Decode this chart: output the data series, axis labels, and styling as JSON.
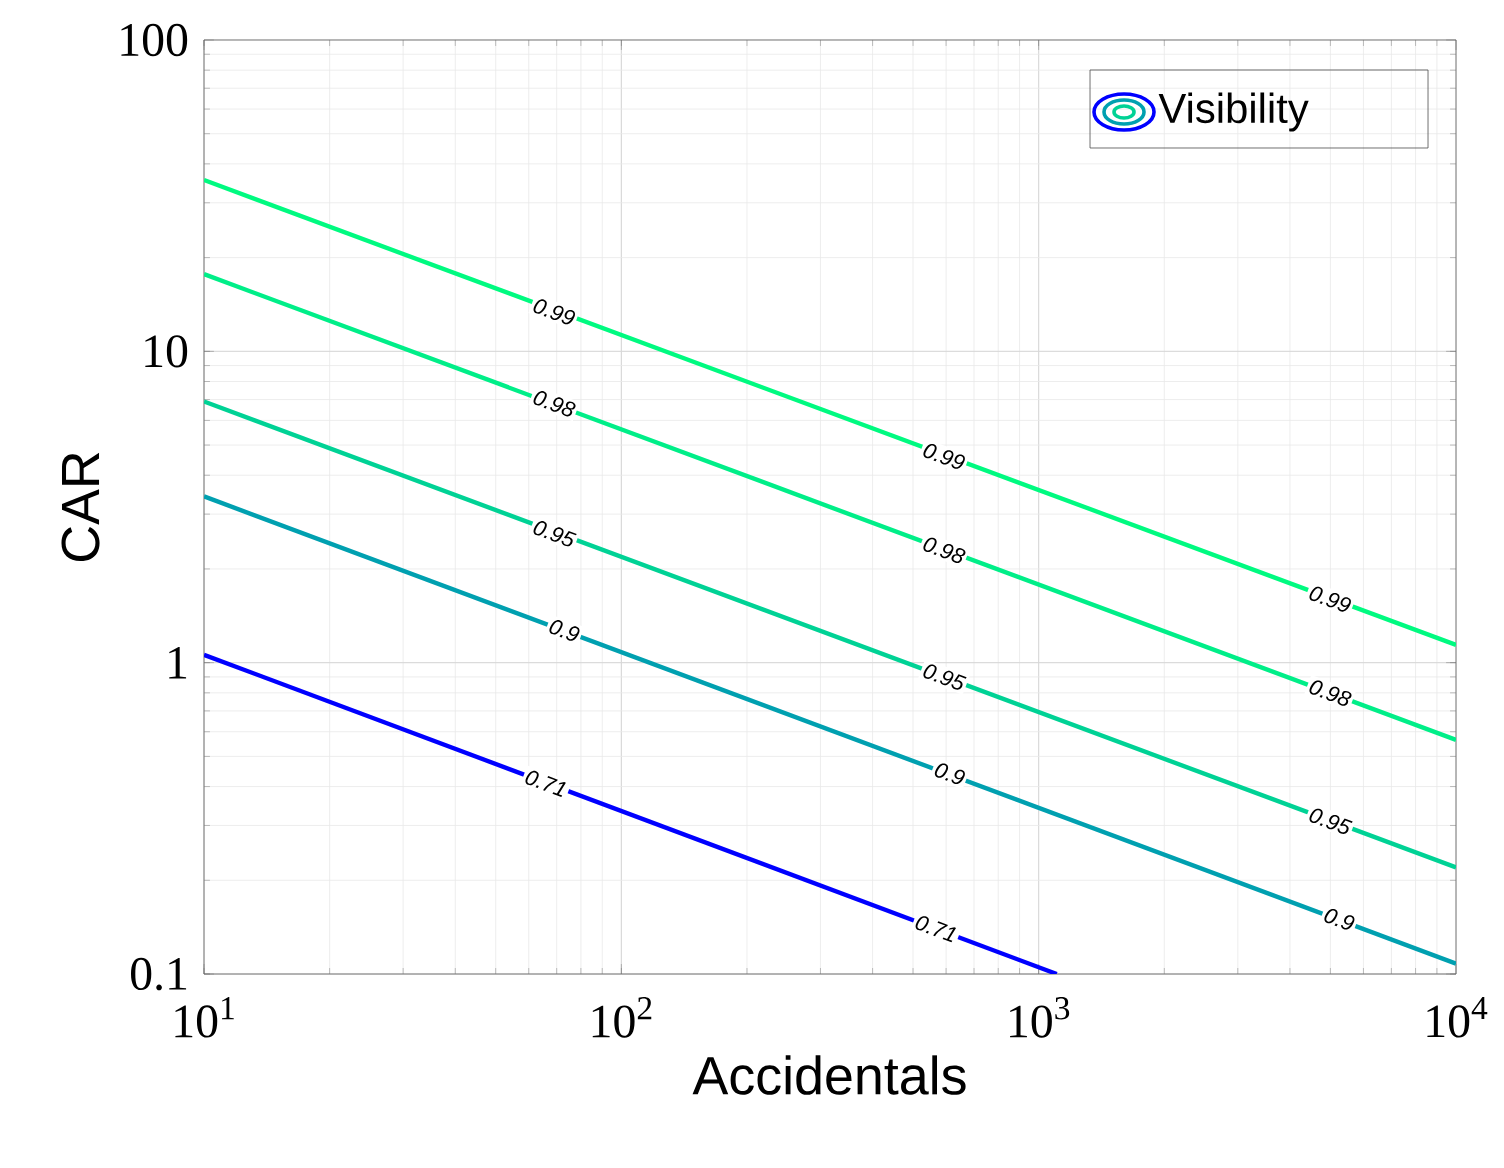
{
  "chart_data": {
    "type": "line",
    "xlabel": "Accidentals",
    "ylabel": "CAR",
    "legend_title": "Visibility",
    "log": "xy",
    "grid": true,
    "marker": "none",
    "line_style": "solid",
    "xlim": [
      10,
      10000
    ],
    "ylim": [
      0.1,
      100
    ],
    "xticks": [
      {
        "value": 10,
        "label": "10$^{1}$"
      },
      {
        "value": 100,
        "label": "10$^{2}$"
      },
      {
        "value": 1000,
        "label": "10$^{3}$"
      },
      {
        "value": 10000,
        "label": "10$^{4}$"
      }
    ],
    "yticks": [
      0.1,
      1,
      10,
      100
    ],
    "series": [
      {
        "color": "#0000ff",
        "x": [
          10,
          1105
        ],
        "values": [
          1.06,
          0.1
        ]
      },
      {
        "color": "#00a0b0",
        "x": [
          10,
          10000
        ],
        "values": [
          3.42,
          0.108
        ]
      },
      {
        "color": "#00d295",
        "x": [
          10,
          10000
        ],
        "values": [
          6.9,
          0.22
        ]
      },
      {
        "color": "#00ee88",
        "x": [
          10,
          10000
        ],
        "values": [
          17.7,
          0.565
        ]
      },
      {
        "color": "#00fa80",
        "x": [
          10,
          10000
        ],
        "values": [
          35.5,
          1.14
        ]
      }
    ],
    "annotations": [
      {
        "text": "0.99",
        "x": 69,
        "y": 13.4
      },
      {
        "text": "0.99",
        "x": 593,
        "y": 4.6
      },
      {
        "text": "0.99",
        "x": 4990,
        "y": 1.6
      },
      {
        "text": "0.98",
        "x": 69,
        "y": 6.8
      },
      {
        "text": "0.98",
        "x": 593,
        "y": 2.3
      },
      {
        "text": "0.98",
        "x": 4990,
        "y": 0.8
      },
      {
        "text": "0.95",
        "x": 69,
        "y": 2.6
      },
      {
        "text": "0.95",
        "x": 593,
        "y": 0.9
      },
      {
        "text": "0.95",
        "x": 4990,
        "y": 0.31
      },
      {
        "text": "0.9",
        "x": 73,
        "y": 1.27
      },
      {
        "text": "0.9",
        "x": 612,
        "y": 0.44
      },
      {
        "text": "0.9",
        "x": 5250,
        "y": 0.15
      },
      {
        "text": "0.71",
        "x": 66,
        "y": 0.41
      },
      {
        "text": "0.71",
        "x": 568,
        "y": 0.14
      }
    ]
  }
}
